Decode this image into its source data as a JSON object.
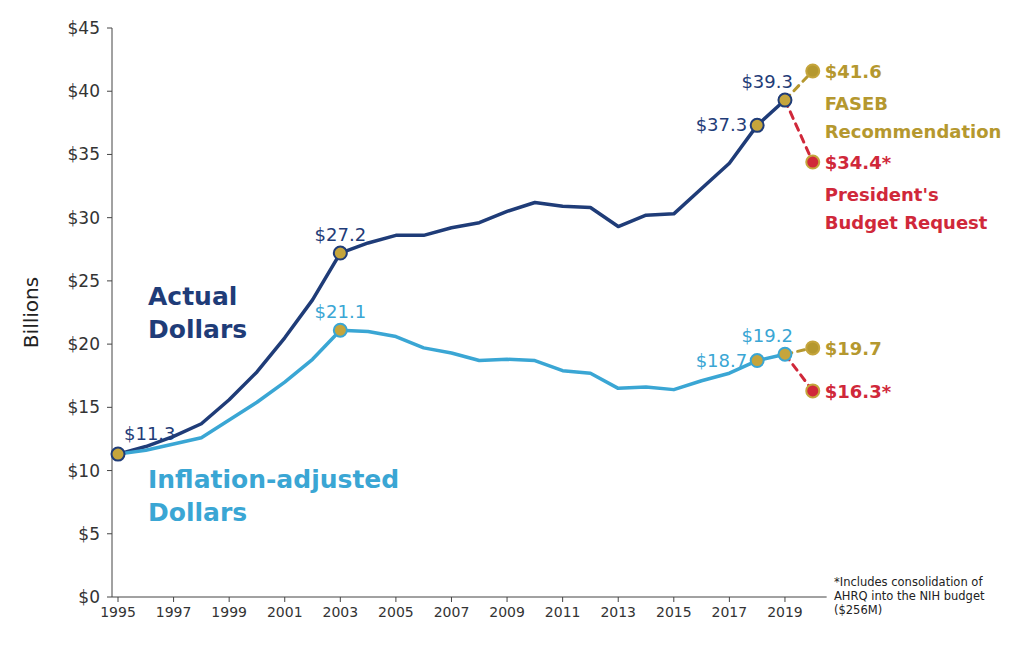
{
  "chart_data": {
    "type": "line",
    "y_label": "Billions",
    "annotation": [
      "*Includes consolidation of",
      "AHRQ into the NIH budget",
      "($256M)"
    ],
    "x": [
      1995,
      1996,
      1997,
      1998,
      1999,
      2000,
      2001,
      2002,
      2003,
      2004,
      2005,
      2006,
      2007,
      2008,
      2009,
      2010,
      2011,
      2012,
      2013,
      2014,
      2015,
      2016,
      2017,
      2018,
      2019,
      2020
    ],
    "xlim": [
      1995,
      2020.5
    ],
    "xticks": [
      1995,
      1997,
      1999,
      2001,
      2003,
      2005,
      2007,
      2009,
      2011,
      2013,
      2015,
      2017,
      2019
    ],
    "ylim": [
      0,
      45
    ],
    "yticks": [
      {
        "value": 0,
        "label": "$0"
      },
      {
        "value": 5,
        "label": "$5"
      },
      {
        "value": 10,
        "label": "$10"
      },
      {
        "value": 15,
        "label": "$15"
      },
      {
        "value": 20,
        "label": "$20"
      },
      {
        "value": 25,
        "label": "$25"
      },
      {
        "value": 30,
        "label": "$30"
      },
      {
        "value": 35,
        "label": "$35"
      },
      {
        "value": 40,
        "label": "$40"
      },
      {
        "value": 45,
        "label": "$45"
      }
    ],
    "grid": false,
    "data_labels": true,
    "series": [
      {
        "name": "Actual Dollars",
        "color": "#1f3c78",
        "line_style": "solid",
        "marker": "circle",
        "values": [
          11.3,
          11.9,
          12.7,
          13.7,
          15.6,
          17.8,
          20.5,
          23.5,
          27.2,
          28.0,
          28.6,
          28.6,
          29.2,
          29.6,
          30.5,
          31.2,
          30.9,
          30.8,
          29.3,
          30.2,
          30.3,
          32.3,
          34.3,
          37.3,
          39.3,
          null
        ],
        "value_labels": [
          "$11.3",
          null,
          null,
          null,
          null,
          null,
          null,
          null,
          "$27.2",
          null,
          null,
          null,
          null,
          null,
          null,
          null,
          null,
          null,
          null,
          null,
          null,
          null,
          null,
          "$37.3",
          "$39.3",
          null
        ]
      },
      {
        "name": "Inflation-adjusted Dollars",
        "color": "#3aa6d4",
        "line_style": "solid",
        "marker": "circle",
        "values": [
          11.3,
          11.6,
          12.1,
          12.6,
          14.0,
          15.4,
          17.0,
          18.8,
          21.1,
          21.0,
          20.6,
          19.7,
          19.3,
          18.7,
          18.8,
          18.7,
          17.9,
          17.7,
          16.5,
          16.6,
          16.4,
          17.1,
          17.7,
          18.7,
          19.2,
          null
        ],
        "value_labels": [
          null,
          null,
          null,
          null,
          null,
          null,
          null,
          null,
          "$21.1",
          null,
          null,
          null,
          null,
          null,
          null,
          null,
          null,
          null,
          null,
          null,
          null,
          null,
          null,
          "$18.7",
          "$19.2",
          null
        ]
      },
      {
        "name": "FASEB Recommendation",
        "color": "#b5982f",
        "line_style": "dashed",
        "marker": "circle",
        "values": [
          null,
          null,
          null,
          null,
          null,
          null,
          null,
          null,
          null,
          null,
          null,
          null,
          null,
          null,
          null,
          null,
          null,
          null,
          null,
          null,
          null,
          null,
          null,
          null,
          39.3,
          41.6
        ],
        "value_labels": [
          null,
          null,
          null,
          null,
          null,
          null,
          null,
          null,
          null,
          null,
          null,
          null,
          null,
          null,
          null,
          null,
          null,
          null,
          null,
          null,
          null,
          null,
          null,
          null,
          null,
          "$41.6"
        ]
      },
      {
        "name": "President's Budget Request",
        "color": "#d0283a",
        "line_style": "dashed",
        "marker": "circle",
        "values": [
          null,
          null,
          null,
          null,
          null,
          null,
          null,
          null,
          null,
          null,
          null,
          null,
          null,
          null,
          null,
          null,
          null,
          null,
          null,
          null,
          null,
          null,
          null,
          null,
          39.3,
          34.4
        ],
        "value_labels": [
          null,
          null,
          null,
          null,
          null,
          null,
          null,
          null,
          null,
          null,
          null,
          null,
          null,
          null,
          null,
          null,
          null,
          null,
          null,
          null,
          null,
          null,
          null,
          null,
          null,
          "$34.4*"
        ]
      },
      {
        "color": "#b5982f",
        "line_style": "dashed",
        "marker": "circle",
        "values": [
          null,
          null,
          null,
          null,
          null,
          null,
          null,
          null,
          null,
          null,
          null,
          null,
          null,
          null,
          null,
          null,
          null,
          null,
          null,
          null,
          null,
          null,
          null,
          null,
          19.2,
          19.7
        ],
        "value_labels": [
          null,
          null,
          null,
          null,
          null,
          null,
          null,
          null,
          null,
          null,
          null,
          null,
          null,
          null,
          null,
          null,
          null,
          null,
          null,
          null,
          null,
          null,
          null,
          null,
          null,
          "$19.7"
        ]
      },
      {
        "color": "#d0283a",
        "line_style": "dashed",
        "marker": "circle",
        "values": [
          null,
          null,
          null,
          null,
          null,
          null,
          null,
          null,
          null,
          null,
          null,
          null,
          null,
          null,
          null,
          null,
          null,
          null,
          null,
          null,
          null,
          null,
          null,
          null,
          19.2,
          16.3
        ],
        "value_labels": [
          null,
          null,
          null,
          null,
          null,
          null,
          null,
          null,
          null,
          null,
          null,
          null,
          null,
          null,
          null,
          null,
          null,
          null,
          null,
          null,
          null,
          null,
          null,
          null,
          null,
          "$16.3*"
        ]
      }
    ]
  }
}
